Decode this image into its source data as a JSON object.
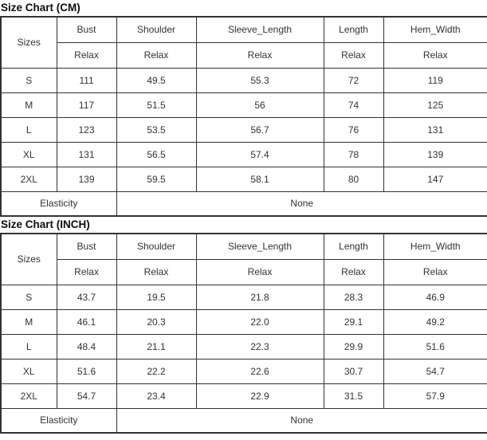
{
  "tables": [
    {
      "title": "Size Chart (CM)",
      "corner_label": "Sizes",
      "columns": [
        "Bust",
        "Shoulder",
        "Sleeve_Length",
        "Length",
        "Hem_Width"
      ],
      "fit": [
        "Relax",
        "Relax",
        "Relax",
        "Relax",
        "Relax"
      ],
      "rows": [
        {
          "size": "S",
          "values": [
            "111",
            "49.5",
            "55.3",
            "72",
            "119"
          ]
        },
        {
          "size": "M",
          "values": [
            "117",
            "51.5",
            "56",
            "74",
            "125"
          ]
        },
        {
          "size": "L",
          "values": [
            "123",
            "53.5",
            "56.7",
            "76",
            "131"
          ]
        },
        {
          "size": "XL",
          "values": [
            "131",
            "56.5",
            "57.4",
            "78",
            "139"
          ]
        },
        {
          "size": "2XL",
          "values": [
            "139",
            "59.5",
            "58.1",
            "80",
            "147"
          ]
        }
      ],
      "elasticity_label": "Elasticity",
      "elasticity_value": "None"
    },
    {
      "title": "Size Chart (INCH)",
      "corner_label": "Sizes",
      "columns": [
        "Bust",
        "Shoulder",
        "Sleeve_Length",
        "Length",
        "Hem_Width"
      ],
      "fit": [
        "Relax",
        "Relax",
        "Relax",
        "Relax",
        "Relax"
      ],
      "rows": [
        {
          "size": "S",
          "values": [
            "43.7",
            "19.5",
            "21.8",
            "28.3",
            "46.9"
          ]
        },
        {
          "size": "M",
          "values": [
            "46.1",
            "20.3",
            "22.0",
            "29.1",
            "49.2"
          ]
        },
        {
          "size": "L",
          "values": [
            "48.4",
            "21.1",
            "22.3",
            "29.9",
            "51.6"
          ]
        },
        {
          "size": "XL",
          "values": [
            "51.6",
            "22.2",
            "22.6",
            "30.7",
            "54.7"
          ]
        },
        {
          "size": "2XL",
          "values": [
            "54.7",
            "23.4",
            "22.9",
            "31.5",
            "57.9"
          ]
        }
      ],
      "elasticity_label": "Elasticity",
      "elasticity_value": "None"
    }
  ],
  "colors": {
    "border": "#333333",
    "text": "#333333",
    "title": "#0d0d0d",
    "background": "#ffffff"
  }
}
